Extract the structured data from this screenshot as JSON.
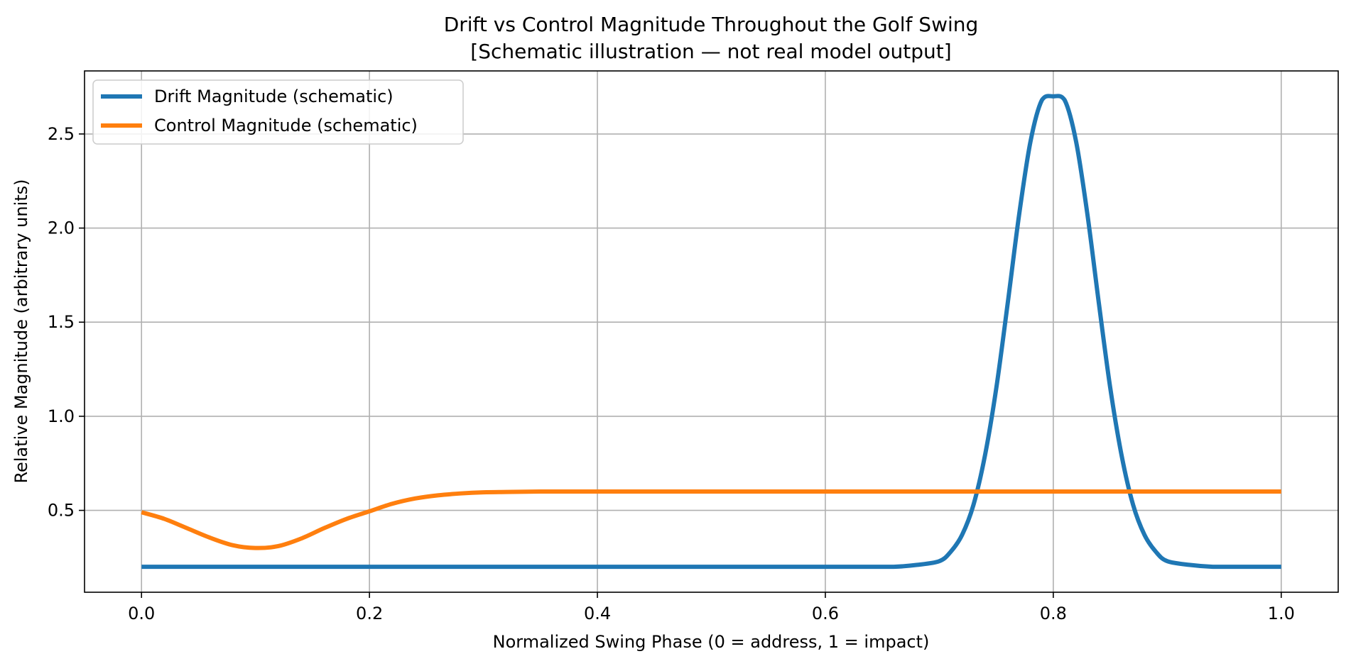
{
  "chart_data": {
    "type": "line",
    "title": "Drift vs Control Magnitude Throughout the Golf Swing",
    "subtitle": "[Schematic illustration — not real model output]",
    "xlabel": "Normalized Swing Phase (0 = address, 1 = impact)",
    "ylabel": "Relative Magnitude (arbitrary units)",
    "xlim": [
      -0.05,
      1.05
    ],
    "ylim": [
      0.065,
      2.835
    ],
    "xticks": [
      "0.0",
      "0.2",
      "0.4",
      "0.6",
      "0.8",
      "1.0"
    ],
    "yticks": [
      "0.5",
      "1.0",
      "1.5",
      "2.0",
      "2.5"
    ],
    "grid": true,
    "legend_position": "top-left",
    "series": [
      {
        "name": "Drift Magnitude (schematic)",
        "color": "#1f77b4",
        "x": [
          0.0,
          0.05,
          0.1,
          0.15,
          0.2,
          0.25,
          0.3,
          0.35,
          0.4,
          0.45,
          0.5,
          0.55,
          0.6,
          0.62,
          0.64,
          0.66,
          0.68,
          0.7,
          0.71,
          0.72,
          0.73,
          0.74,
          0.75,
          0.76,
          0.77,
          0.78,
          0.79,
          0.8,
          0.81,
          0.82,
          0.83,
          0.84,
          0.85,
          0.86,
          0.87,
          0.88,
          0.89,
          0.9,
          0.92,
          0.94,
          0.96,
          0.98,
          1.0
        ],
        "y": [
          0.2,
          0.2,
          0.2,
          0.2,
          0.2,
          0.2,
          0.2,
          0.2,
          0.2,
          0.2,
          0.2,
          0.2,
          0.2,
          0.2,
          0.2,
          0.2,
          0.21,
          0.23,
          0.28,
          0.37,
          0.53,
          0.79,
          1.15,
          1.6,
          2.07,
          2.46,
          2.68,
          2.7,
          2.68,
          2.46,
          2.07,
          1.6,
          1.15,
          0.79,
          0.53,
          0.37,
          0.28,
          0.23,
          0.21,
          0.2,
          0.2,
          0.2,
          0.2
        ]
      },
      {
        "name": "Control Magnitude (schematic)",
        "color": "#ff7f0e",
        "x": [
          0.0,
          0.02,
          0.04,
          0.06,
          0.08,
          0.1,
          0.12,
          0.14,
          0.16,
          0.18,
          0.2,
          0.22,
          0.24,
          0.26,
          0.28,
          0.3,
          0.32,
          0.35,
          0.4,
          0.5,
          0.6,
          0.7,
          0.8,
          0.9,
          1.0
        ],
        "y": [
          0.49,
          0.455,
          0.405,
          0.355,
          0.315,
          0.3,
          0.31,
          0.35,
          0.405,
          0.455,
          0.495,
          0.535,
          0.563,
          0.58,
          0.59,
          0.596,
          0.598,
          0.6,
          0.6,
          0.6,
          0.6,
          0.6,
          0.6,
          0.6,
          0.6
        ]
      }
    ]
  }
}
